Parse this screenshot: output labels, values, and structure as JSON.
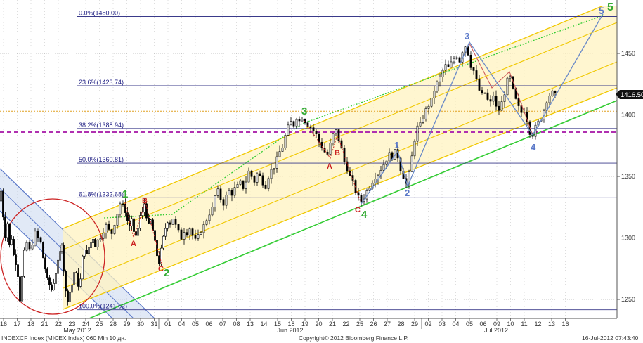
{
  "chart_data": {
    "type": "candlestick",
    "footer": {
      "left": "INDEXCF Index (MICEX Index) 060 Min 10 дн.",
      "center": "Copyright© 2012 Bloomberg Finance L.P.",
      "right": "16-Jul-2012 07:43:40"
    },
    "current_price": "1416.50",
    "y_axis": {
      "range": [
        1240,
        1488
      ],
      "ticks": [
        "1450",
        "1400",
        "1350",
        "1300",
        "1250"
      ]
    },
    "x_axis": {
      "day_ticks": [
        "16",
        "17",
        "18",
        "21",
        "22",
        "23",
        "24",
        "25",
        "28",
        "29",
        "30",
        "31",
        "01",
        "04",
        "05",
        "06",
        "07",
        "08",
        "13",
        "14",
        "15",
        "18",
        "19",
        "20",
        "21",
        "22",
        "25",
        "26",
        "27",
        "28",
        "29",
        "02",
        "03",
        "04",
        "05",
        "06",
        "09",
        "10",
        "11",
        "12",
        "13",
        "16"
      ],
      "months": [
        "May 2012",
        "Jun 2012",
        "Jul 2012"
      ]
    },
    "fib_levels": [
      {
        "label": "0.0%(1480.00)",
        "value": 1480.0
      },
      {
        "label": "23.6%(1423.74)",
        "value": 1423.74
      },
      {
        "label": "38.2%(1388.94)",
        "value": 1388.94
      },
      {
        "label": "50.0%(1360.81)",
        "value": 1360.81
      },
      {
        "label": "61.8%(1332.68)",
        "value": 1332.68
      },
      {
        "label": "100.0%(1241.62)",
        "value": 1241.62
      }
    ],
    "reference_lines": [
      {
        "value": 1300
      },
      {
        "value": 1403
      },
      {
        "value": 1386
      }
    ],
    "price_path": [
      [
        0,
        1330
      ],
      [
        3,
        1338
      ],
      [
        6,
        1318
      ],
      [
        9,
        1302
      ],
      [
        12,
        1312
      ],
      [
        15,
        1294
      ],
      [
        18,
        1300
      ],
      [
        21,
        1286
      ],
      [
        24,
        1280
      ],
      [
        27,
        1270
      ],
      [
        30,
        1250
      ],
      [
        33,
        1268
      ],
      [
        36,
        1288
      ],
      [
        40,
        1296
      ],
      [
        44,
        1290
      ],
      [
        48,
        1296
      ],
      [
        52,
        1304
      ],
      [
        56,
        1300
      ],
      [
        60,
        1296
      ],
      [
        63,
        1284
      ],
      [
        66,
        1275
      ],
      [
        69,
        1266
      ],
      [
        72,
        1262
      ],
      [
        75,
        1258
      ],
      [
        78,
        1264
      ],
      [
        81,
        1272
      ],
      [
        84,
        1280
      ],
      [
        87,
        1288
      ],
      [
        89,
        1296
      ],
      [
        92,
        1274
      ],
      [
        95,
        1256
      ],
      [
        98,
        1250
      ],
      [
        101,
        1256
      ],
      [
        104,
        1262
      ],
      [
        107,
        1272
      ],
      [
        110,
        1270
      ],
      [
        113,
        1262
      ],
      [
        116,
        1266
      ],
      [
        119,
        1284
      ],
      [
        122,
        1292
      ],
      [
        125,
        1286
      ],
      [
        128,
        1292
      ],
      [
        131,
        1296
      ],
      [
        134,
        1300
      ],
      [
        137,
        1294
      ],
      [
        141,
        1298
      ],
      [
        145,
        1301
      ],
      [
        149,
        1306
      ],
      [
        153,
        1310
      ],
      [
        157,
        1306
      ],
      [
        161,
        1304
      ],
      [
        165,
        1312
      ],
      [
        169,
        1320
      ],
      [
        173,
        1328
      ],
      [
        177,
        1326
      ],
      [
        180,
        1322
      ],
      [
        183,
        1314
      ],
      [
        186,
        1310
      ],
      [
        189,
        1316
      ],
      [
        192,
        1304
      ],
      [
        195,
        1300
      ],
      [
        198,
        1308
      ],
      [
        201,
        1318
      ],
      [
        204,
        1320
      ],
      [
        207,
        1328
      ],
      [
        210,
        1318
      ],
      [
        213,
        1310
      ],
      [
        216,
        1314
      ],
      [
        219,
        1306
      ],
      [
        222,
        1296
      ],
      [
        225,
        1286
      ],
      [
        228,
        1280
      ],
      [
        231,
        1290
      ],
      [
        234,
        1300
      ],
      [
        237,
        1308
      ],
      [
        240,
        1314
      ],
      [
        244,
        1312
      ],
      [
        248,
        1316
      ],
      [
        252,
        1310
      ],
      [
        256,
        1305
      ],
      [
        260,
        1300
      ],
      [
        264,
        1306
      ],
      [
        268,
        1304
      ],
      [
        272,
        1308
      ],
      [
        276,
        1302
      ],
      [
        280,
        1298
      ],
      [
        284,
        1301
      ],
      [
        288,
        1306
      ],
      [
        292,
        1310
      ],
      [
        296,
        1315
      ],
      [
        300,
        1320
      ],
      [
        304,
        1324
      ],
      [
        308,
        1334
      ],
      [
        312,
        1338
      ],
      [
        316,
        1332
      ],
      [
        320,
        1328
      ],
      [
        324,
        1334
      ],
      [
        328,
        1338
      ],
      [
        332,
        1336
      ],
      [
        336,
        1340
      ],
      [
        340,
        1342
      ],
      [
        344,
        1345
      ],
      [
        348,
        1341
      ],
      [
        352,
        1346
      ],
      [
        356,
        1354
      ],
      [
        360,
        1350
      ],
      [
        364,
        1346
      ],
      [
        368,
        1352
      ],
      [
        372,
        1350
      ],
      [
        376,
        1345
      ],
      [
        380,
        1342
      ],
      [
        384,
        1350
      ],
      [
        388,
        1355
      ],
      [
        392,
        1358
      ],
      [
        396,
        1364
      ],
      [
        400,
        1370
      ],
      [
        404,
        1374
      ],
      [
        408,
        1383
      ],
      [
        412,
        1390
      ],
      [
        416,
        1394
      ],
      [
        420,
        1392
      ],
      [
        424,
        1398
      ],
      [
        428,
        1395
      ],
      [
        432,
        1398
      ],
      [
        436,
        1395
      ],
      [
        440,
        1392
      ],
      [
        444,
        1390
      ],
      [
        448,
        1387
      ],
      [
        452,
        1384
      ],
      [
        456,
        1378
      ],
      [
        460,
        1374
      ],
      [
        464,
        1370
      ],
      [
        468,
        1368
      ],
      [
        472,
        1376
      ],
      [
        476,
        1384
      ],
      [
        480,
        1387
      ],
      [
        484,
        1380
      ],
      [
        488,
        1372
      ],
      [
        492,
        1362
      ],
      [
        496,
        1356
      ],
      [
        500,
        1350
      ],
      [
        504,
        1345
      ],
      [
        508,
        1338
      ],
      [
        512,
        1333
      ],
      [
        516,
        1330
      ],
      [
        520,
        1333
      ],
      [
        524,
        1338
      ],
      [
        528,
        1342
      ],
      [
        532,
        1346
      ],
      [
        536,
        1350
      ],
      [
        540,
        1352
      ],
      [
        544,
        1356
      ],
      [
        548,
        1360
      ],
      [
        552,
        1364
      ],
      [
        556,
        1368
      ],
      [
        560,
        1366
      ],
      [
        564,
        1370
      ],
      [
        568,
        1366
      ],
      [
        572,
        1356
      ],
      [
        576,
        1350
      ],
      [
        580,
        1344
      ],
      [
        584,
        1352
      ],
      [
        588,
        1366
      ],
      [
        592,
        1380
      ],
      [
        596,
        1390
      ],
      [
        600,
        1392
      ],
      [
        604,
        1398
      ],
      [
        608,
        1404
      ],
      [
        612,
        1408
      ],
      [
        616,
        1412
      ],
      [
        620,
        1420
      ],
      [
        624,
        1426
      ],
      [
        628,
        1430
      ],
      [
        632,
        1436
      ],
      [
        636,
        1440
      ],
      [
        640,
        1438
      ],
      [
        644,
        1442
      ],
      [
        648,
        1446
      ],
      [
        652,
        1448
      ],
      [
        656,
        1444
      ],
      [
        660,
        1452
      ],
      [
        664,
        1456
      ],
      [
        668,
        1450
      ],
      [
        672,
        1440
      ],
      [
        676,
        1436
      ],
      [
        680,
        1428
      ],
      [
        684,
        1420
      ],
      [
        688,
        1416
      ],
      [
        692,
        1418
      ],
      [
        696,
        1412
      ],
      [
        700,
        1410
      ],
      [
        704,
        1416
      ],
      [
        708,
        1406
      ],
      [
        712,
        1404
      ],
      [
        716,
        1410
      ],
      [
        720,
        1418
      ],
      [
        724,
        1428
      ],
      [
        728,
        1430
      ],
      [
        732,
        1420
      ],
      [
        736,
        1412
      ],
      [
        740,
        1406
      ],
      [
        744,
        1402
      ],
      [
        748,
        1404
      ],
      [
        752,
        1396
      ],
      [
        756,
        1386
      ],
      [
        760,
        1384
      ],
      [
        764,
        1390
      ],
      [
        768,
        1394
      ],
      [
        772,
        1398
      ],
      [
        776,
        1404
      ],
      [
        780,
        1412
      ],
      [
        784,
        1416
      ],
      [
        788,
        1418
      ],
      [
        792,
        1416
      ]
    ],
    "channels": [
      {
        "name": "blue-down-channel",
        "color": "#5a78c8",
        "fill": "#cddaf0"
      },
      {
        "name": "yellow-up-channel",
        "color": "#f0c800",
        "fill": "#fff3c0"
      },
      {
        "name": "green-trendline",
        "color": "#33cc33"
      }
    ],
    "wave_labels": [
      {
        "text": "1",
        "color": "#33aa33"
      },
      {
        "text": "2",
        "color": "#33aa33"
      },
      {
        "text": "3",
        "color": "#33aa33"
      },
      {
        "text": "4",
        "color": "#33aa33"
      },
      {
        "text": "5",
        "color": "#33aa33"
      },
      {
        "text": "1",
        "color": "#5a78c8"
      },
      {
        "text": "2",
        "color": "#5a78c8"
      },
      {
        "text": "3",
        "color": "#5a78c8"
      },
      {
        "text": "4",
        "color": "#5a78c8"
      },
      {
        "text": "5",
        "color": "#5a78c8"
      },
      {
        "text": "A",
        "color": "#cc2222"
      },
      {
        "text": "B",
        "color": "#cc2222"
      },
      {
        "text": "C",
        "color": "#cc2222"
      },
      {
        "text": "A",
        "color": "#cc2222"
      },
      {
        "text": "B",
        "color": "#cc2222"
      },
      {
        "text": "C",
        "color": "#cc2222"
      }
    ]
  }
}
